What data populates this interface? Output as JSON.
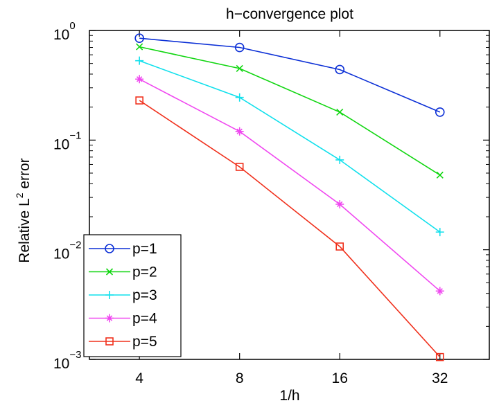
{
  "chart_data": {
    "type": "line",
    "title": "h−convergence plot",
    "xlabel": "1/h",
    "ylabel": "Relative L",
    "ylabel_superscript": "2",
    "ylabel_suffix": " error",
    "x_scale": "log2",
    "y_scale": "log10",
    "x": [
      4,
      8,
      16,
      32
    ],
    "x_tick_labels": [
      "4",
      "8",
      "16",
      "32"
    ],
    "xlim": [
      2.83,
      45.25
    ],
    "ylim": [
      0.001,
      1
    ],
    "y_ticks": [
      {
        "value": 1,
        "base": "10",
        "exp": "0"
      },
      {
        "value": 0.1,
        "base": "10",
        "exp": "−1"
      },
      {
        "value": 0.01,
        "base": "10",
        "exp": "−2"
      },
      {
        "value": 0.001,
        "base": "10",
        "exp": "−3"
      }
    ],
    "grid": false,
    "legend_position": "bottom-left",
    "series": [
      {
        "name": "p=1",
        "color": "#0b2fd6",
        "marker": "circle",
        "values": [
          0.85,
          0.7,
          0.44,
          0.18
        ]
      },
      {
        "name": "p=2",
        "color": "#11d611",
        "marker": "x",
        "values": [
          0.71,
          0.45,
          0.18,
          0.048
        ]
      },
      {
        "name": "p=3",
        "color": "#10e0ec",
        "marker": "plus",
        "values": [
          0.53,
          0.245,
          0.066,
          0.0145
        ]
      },
      {
        "name": "p=4",
        "color": "#f048f0",
        "marker": "star",
        "values": [
          0.36,
          0.12,
          0.026,
          0.0042
        ]
      },
      {
        "name": "p=5",
        "color": "#f0301c",
        "marker": "square",
        "values": [
          0.23,
          0.057,
          0.0107,
          0.00105
        ]
      }
    ]
  }
}
